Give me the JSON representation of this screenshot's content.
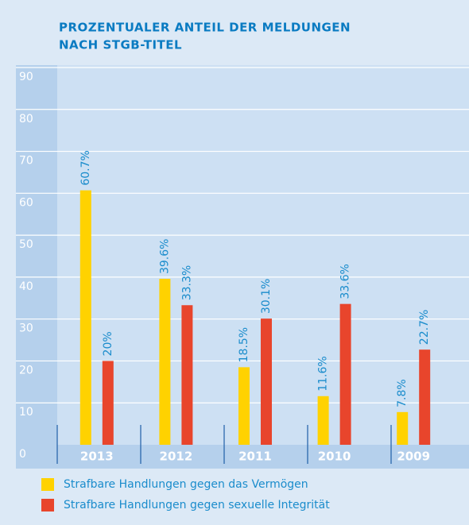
{
  "chart_data": {
    "type": "bar",
    "title_lines": [
      "PROZENTUALER ANTEIL DER MELDUNGEN",
      "NACH STGB-TITEL"
    ],
    "categories": [
      "2013",
      "2012",
      "2011",
      "2010",
      "2009"
    ],
    "series": [
      {
        "name": "Strafbare Handlungen gegen das Vermögen",
        "color": "#ffd200",
        "values": [
          60.7,
          39.6,
          18.5,
          11.6,
          7.8
        ],
        "value_labels": [
          "60.7%",
          "39.6%",
          "18.5%",
          "11.6%",
          "7.8%"
        ]
      },
      {
        "name": "Strafbare Handlungen gegen sexuelle Integrität",
        "color": "#e8452c",
        "values": [
          20,
          33.3,
          30.1,
          33.6,
          22.7
        ],
        "value_labels": [
          "20%",
          "33.3%",
          "30.1%",
          "33.6%",
          "22.7%"
        ]
      }
    ],
    "ylim": [
      0,
      90
    ],
    "yticks": [
      0,
      10,
      20,
      30,
      40,
      50,
      60,
      70,
      80,
      90
    ],
    "grid": true
  }
}
